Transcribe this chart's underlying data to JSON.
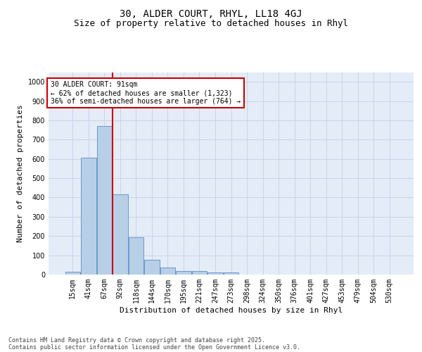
{
  "title1": "30, ALDER COURT, RHYL, LL18 4GJ",
  "title2": "Size of property relative to detached houses in Rhyl",
  "xlabel": "Distribution of detached houses by size in Rhyl",
  "ylabel": "Number of detached properties",
  "categories": [
    "15sqm",
    "41sqm",
    "67sqm",
    "92sqm",
    "118sqm",
    "144sqm",
    "170sqm",
    "195sqm",
    "221sqm",
    "247sqm",
    "273sqm",
    "298sqm",
    "324sqm",
    "350sqm",
    "376sqm",
    "401sqm",
    "427sqm",
    "453sqm",
    "479sqm",
    "504sqm",
    "530sqm"
  ],
  "values": [
    15,
    605,
    770,
    415,
    192,
    78,
    38,
    18,
    18,
    12,
    12,
    0,
    0,
    0,
    0,
    0,
    0,
    0,
    0,
    0,
    0
  ],
  "bar_color": "#b8cfe8",
  "bar_edge_color": "#5b8cc8",
  "vline_color": "#cc0000",
  "annotation_text": "30 ALDER COURT: 91sqm\n← 62% of detached houses are smaller (1,323)\n36% of semi-detached houses are larger (764) →",
  "annotation_box_color": "#cc0000",
  "ylim": [
    0,
    1050
  ],
  "yticks": [
    0,
    100,
    200,
    300,
    400,
    500,
    600,
    700,
    800,
    900,
    1000
  ],
  "grid_color": "#c8d4e8",
  "bg_color": "#e4ecf7",
  "footer1": "Contains HM Land Registry data © Crown copyright and database right 2025.",
  "footer2": "Contains public sector information licensed under the Open Government Licence v3.0.",
  "title_fontsize": 10,
  "subtitle_fontsize": 9,
  "axis_label_fontsize": 8,
  "tick_fontsize": 7,
  "annot_fontsize": 7,
  "footer_fontsize": 6
}
